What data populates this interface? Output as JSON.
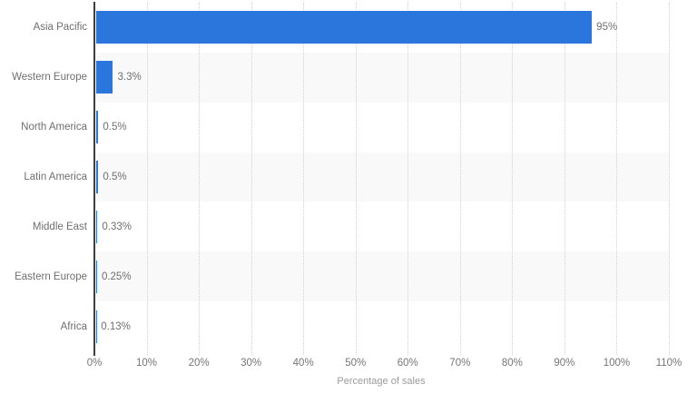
{
  "chart_data": {
    "type": "bar",
    "orientation": "horizontal",
    "title": "",
    "categories": [
      "Asia Pacific",
      "Western Europe",
      "North America",
      "Latin America",
      "Middle East",
      "Eastern Europe",
      "Africa"
    ],
    "values": [
      95,
      3.3,
      0.5,
      0.5,
      0.33,
      0.25,
      0.13
    ],
    "value_labels": [
      "95%",
      "3.3%",
      "0.5%",
      "0.5%",
      "0.33%",
      "0.25%",
      "0.13%"
    ],
    "xlabel": "Percentage of sales",
    "ylabel": "",
    "xlim": [
      0,
      110
    ],
    "x_tick_values": [
      0,
      10,
      20,
      30,
      40,
      50,
      60,
      70,
      80,
      90,
      100,
      110
    ],
    "x_tick_labels": [
      "0%",
      "10%",
      "20%",
      "30%",
      "40%",
      "50%",
      "60%",
      "70%",
      "80%",
      "90%",
      "100%",
      "110%"
    ],
    "grid": "vertical-dotted",
    "legend": "none",
    "colors": {
      "bar": "#2b76dd",
      "row_band": "#f9f9f9",
      "gridline": "#d2d2d2",
      "axis_line": "#3d3d3d",
      "category_label": "#6f6f6f",
      "value_label": "#6f6f6f",
      "tick_label": "#757575",
      "axis_title": "#9b9b9b"
    }
  }
}
